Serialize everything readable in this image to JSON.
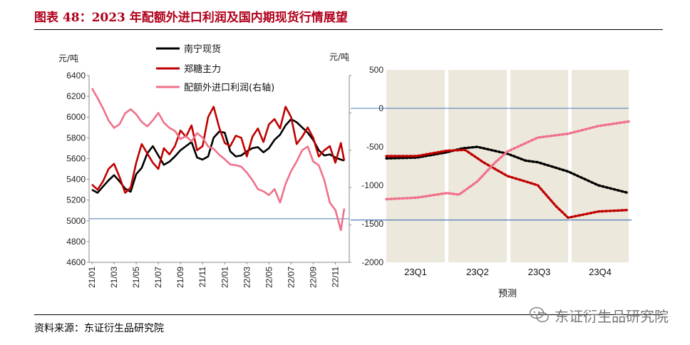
{
  "title": "图表 48：2023 年配额外进口利润及国内期现货行情展望",
  "source": "资料来源：东证衍生品研究院",
  "watermark": "东证衍生品研究院",
  "colors": {
    "title": "#b0001a",
    "nanning": "#000000",
    "zhengtang": "#c00000",
    "profit": "#f0708a",
    "forecast_bg": "#ece8dc",
    "ref_line": "#4a7ab5"
  },
  "chart_data": [
    {
      "type": "line",
      "left_unit": "元/吨",
      "right_unit": "元/吨",
      "y_left_lim": [
        4600,
        6400
      ],
      "y_left_ticks": [
        6400,
        6200,
        6000,
        5800,
        5600,
        5400,
        5200,
        5000,
        4800,
        4600
      ],
      "y_right_lim": [
        -2000,
        500
      ],
      "y_right_ticks": [
        500,
        0,
        -500,
        -1000,
        -1500,
        -2000
      ],
      "x_ticks": [
        "21/01",
        "21/03",
        "21/05",
        "21/07",
        "21/09",
        "21/11",
        "22/01",
        "22/03",
        "22/05",
        "22/07",
        "22/09",
        "22/11"
      ],
      "reference_line_left_value": 5020,
      "series": [
        {
          "name": "南宁现货",
          "axis": "left",
          "style": "solid",
          "x": [
            0,
            0.5,
            1,
            1.5,
            2,
            2.5,
            3,
            3.5,
            4,
            4.5,
            5,
            5.5,
            6,
            6.5,
            7,
            7.5,
            8,
            8.5,
            9,
            9.5,
            10,
            10.5,
            11,
            11.5,
            12,
            12.5,
            13,
            13.5,
            14,
            14.5,
            15,
            15.5,
            16,
            16.5,
            17,
            17.5,
            18,
            18.5,
            19,
            19.5,
            20,
            20.5,
            21,
            21.5,
            22,
            22.5,
            22.8
          ],
          "values": [
            5300,
            5270,
            5330,
            5390,
            5440,
            5380,
            5310,
            5280,
            5450,
            5510,
            5650,
            5720,
            5630,
            5540,
            5570,
            5620,
            5680,
            5720,
            5760,
            5610,
            5590,
            5620,
            5800,
            5860,
            5850,
            5670,
            5620,
            5630,
            5670,
            5700,
            5710,
            5660,
            5700,
            5780,
            5830,
            5920,
            5980,
            5950,
            5900,
            5850,
            5780,
            5680,
            5630,
            5640,
            5610,
            5590,
            5580
          ]
        },
        {
          "name": "郑糖主力",
          "axis": "left",
          "style": "solid",
          "x": [
            0,
            0.5,
            1,
            1.5,
            2,
            2.5,
            3,
            3.5,
            4,
            4.5,
            5,
            5.5,
            6,
            6.5,
            7,
            7.5,
            8,
            8.5,
            9,
            9.5,
            10,
            10.5,
            11,
            11.5,
            12,
            12.5,
            13,
            13.5,
            14,
            14.5,
            15,
            15.5,
            16,
            16.5,
            17,
            17.5,
            18,
            18.5,
            19,
            19.5,
            20,
            20.5,
            21,
            21.5,
            22,
            22.5,
            22.8
          ],
          "values": [
            5350,
            5300,
            5380,
            5500,
            5550,
            5420,
            5270,
            5320,
            5560,
            5740,
            5650,
            5560,
            5500,
            5700,
            5640,
            5720,
            5870,
            5810,
            5920,
            5680,
            5720,
            6000,
            6100,
            5900,
            5750,
            5720,
            5820,
            5800,
            5620,
            5810,
            5890,
            5760,
            5930,
            5980,
            5890,
            6100,
            6000,
            5740,
            5810,
            5900,
            5800,
            5620,
            5680,
            5720,
            5560,
            5750,
            5580
          ]
        },
        {
          "name": "配额外进口利润(右轴)",
          "axis": "right",
          "style": "solid",
          "x": [
            0,
            0.5,
            1,
            1.5,
            2,
            2.5,
            3,
            3.5,
            4,
            4.5,
            5,
            5.5,
            6,
            6.5,
            7,
            7.5,
            8,
            8.5,
            9,
            9.5,
            10,
            10.5,
            11,
            11.5,
            12,
            12.5,
            13,
            13.5,
            14,
            14.5,
            15,
            15.5,
            16,
            16.5,
            17,
            17.5,
            18,
            18.5,
            19,
            19.5,
            20,
            20.5,
            21,
            21.5,
            22,
            22.5,
            22.8
          ],
          "values": [
            330,
            200,
            60,
            -100,
            -200,
            -150,
            -5,
            50,
            -20,
            -120,
            -180,
            -100,
            0,
            -130,
            -200,
            -240,
            -350,
            -310,
            -380,
            -270,
            -330,
            -450,
            -480,
            -560,
            -620,
            -690,
            -700,
            -720,
            -800,
            -900,
            -1020,
            -1050,
            -1100,
            -1020,
            -1200,
            -950,
            -780,
            -650,
            -500,
            -450,
            -650,
            -700,
            -900,
            -1200,
            -1300,
            -1570,
            -1280
          ]
        }
      ]
    },
    {
      "type": "line",
      "y_lim": [
        -2000,
        500
      ],
      "y_ticks": [
        500,
        0,
        -500,
        -1000,
        -1500,
        -2000
      ],
      "x_label": "预测",
      "quarters": [
        "23Q1",
        "23Q2",
        "23Q3",
        "23Q4"
      ],
      "reference_lines": [
        0,
        -1450
      ],
      "series": [
        {
          "name": "南宁现货",
          "style": "dotted",
          "x": [
            0,
            0.5,
            1,
            1.25,
            1.5,
            2,
            2.3,
            2.5,
            3,
            3.5,
            4
          ],
          "values": [
            -650,
            -640,
            -570,
            -520,
            -500,
            -590,
            -680,
            -700,
            -820,
            -1000,
            -1100
          ]
        },
        {
          "name": "郑糖主力",
          "style": "dotted",
          "x": [
            0,
            0.5,
            1,
            1.3,
            1.6,
            2,
            2.3,
            2.5,
            2.8,
            3,
            3.5,
            4
          ],
          "values": [
            -620,
            -620,
            -550,
            -540,
            -700,
            -880,
            -950,
            -1000,
            -1270,
            -1420,
            -1340,
            -1320
          ]
        },
        {
          "name": "配额外进口利润(右轴)",
          "style": "dotted",
          "x": [
            0,
            0.5,
            1,
            1.2,
            1.5,
            1.8,
            2,
            2.5,
            3,
            3.5,
            4
          ],
          "values": [
            -1180,
            -1160,
            -1100,
            -1120,
            -950,
            -700,
            -560,
            -380,
            -330,
            -230,
            -170
          ]
        }
      ]
    }
  ]
}
